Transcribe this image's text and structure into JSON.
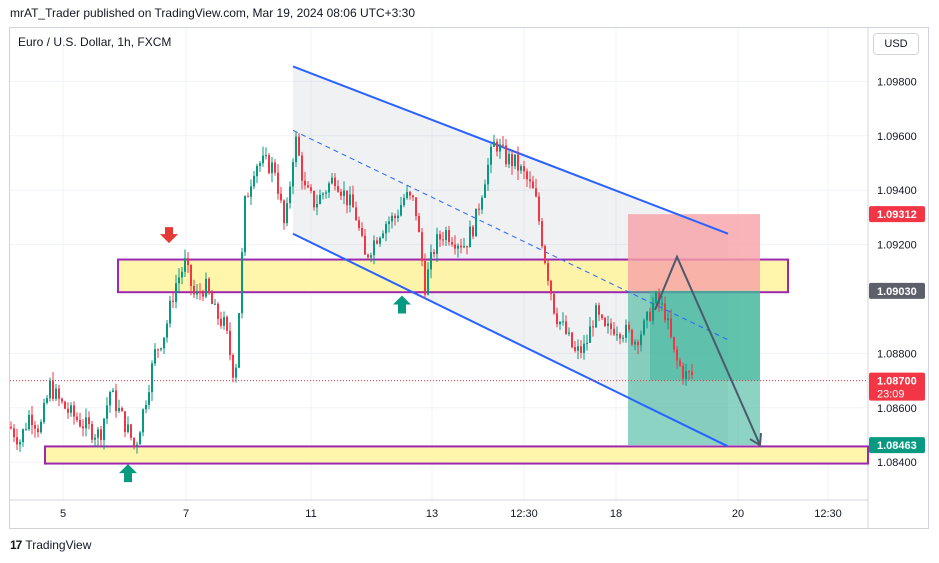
{
  "header": {
    "published_by": "mrAT_Trader published on TradingView.com, Mar 19, 2024 08:06 UTC+3:30",
    "symbol": "Euro / U.S. Dollar, 1h, FXCM",
    "currency_button": "USD"
  },
  "footer": {
    "brand_mark": "17",
    "brand": "TradingView"
  },
  "colors": {
    "up": "#089981",
    "down": "#f23645",
    "channel": "#2962ff",
    "zone_fill": "#fff59d",
    "zone_border": "#9c27b0",
    "stop": "#f7a1a8",
    "target": "#3fb69b",
    "label_dark": "#5d606b"
  },
  "chart_data": {
    "type": "candlestick",
    "title": "Euro / U.S. Dollar, 1h, FXCM",
    "ylim": [
      1.0825,
      1.0995
    ],
    "y_ticks": [
      "1.09800",
      "1.09600",
      "1.09400",
      "1.09200",
      "1.08800",
      "1.08600",
      "1.08400"
    ],
    "x_ticks": [
      "5",
      "7",
      "11",
      "13",
      "12:30",
      "18",
      "20",
      "12:30"
    ],
    "price_labels": [
      {
        "text": "1.09312",
        "value": 1.09312,
        "color": "#f23645"
      },
      {
        "text": "1.09030",
        "value": 1.0903,
        "color": "#5d606b"
      },
      {
        "text": "1.08700",
        "value": 1.087,
        "color": "#f23645",
        "countdown": "23:09"
      },
      {
        "text": "1.08463",
        "value": 1.08463,
        "color": "#089981"
      }
    ],
    "close_path": [
      [
        0,
        1.0853
      ],
      [
        10,
        1.0848
      ],
      [
        20,
        1.0858
      ],
      [
        30,
        1.0852
      ],
      [
        40,
        1.0868
      ],
      [
        50,
        1.0862
      ],
      [
        60,
        1.0858
      ],
      [
        70,
        1.0855
      ],
      [
        80,
        1.0852
      ],
      [
        90,
        1.085
      ],
      [
        100,
        1.0866
      ],
      [
        110,
        1.0858
      ],
      [
        120,
        1.085
      ],
      [
        125,
        1.0845
      ],
      [
        135,
        1.0862
      ],
      [
        145,
        1.088
      ],
      [
        155,
        1.0888
      ],
      [
        165,
        1.0905
      ],
      [
        175,
        1.0913
      ],
      [
        185,
        1.09
      ],
      [
        195,
        1.0905
      ],
      [
        205,
        1.0895
      ],
      [
        215,
        1.089
      ],
      [
        225,
        1.087
      ],
      [
        235,
        1.0935
      ],
      [
        245,
        1.095
      ],
      [
        255,
        1.095
      ],
      [
        265,
        1.0948
      ],
      [
        275,
        1.0925
      ],
      [
        285,
        1.096
      ],
      [
        295,
        1.094
      ],
      [
        305,
        1.0935
      ],
      [
        315,
        1.094
      ],
      [
        325,
        1.0945
      ],
      [
        335,
        1.0938
      ],
      [
        345,
        1.0932
      ],
      [
        355,
        1.0915
      ],
      [
        365,
        1.0922
      ],
      [
        375,
        1.0928
      ],
      [
        385,
        1.093
      ],
      [
        395,
        1.0938
      ],
      [
        405,
        1.0935
      ],
      [
        415,
        1.0905
      ],
      [
        425,
        1.092
      ],
      [
        435,
        1.0925
      ],
      [
        445,
        1.0922
      ],
      [
        455,
        1.092
      ],
      [
        465,
        1.0928
      ],
      [
        475,
        1.0945
      ],
      [
        485,
        1.0958
      ],
      [
        495,
        1.0952
      ],
      [
        505,
        1.095
      ],
      [
        515,
        1.0945
      ],
      [
        525,
        1.0938
      ],
      [
        535,
        1.0915
      ],
      [
        545,
        1.0895
      ],
      [
        555,
        1.0888
      ],
      [
        565,
        1.088
      ],
      [
        575,
        1.0882
      ],
      [
        585,
        1.0895
      ],
      [
        595,
        1.0888
      ],
      [
        605,
        1.089
      ],
      [
        615,
        1.0888
      ],
      [
        625,
        1.0885
      ],
      [
        635,
        1.089
      ],
      [
        645,
        1.09
      ],
      [
        655,
        1.0895
      ],
      [
        665,
        1.0878
      ],
      [
        675,
        1.0872
      ],
      [
        685,
        1.0872
      ],
      [
        692,
        1.087
      ]
    ],
    "zones": [
      {
        "name": "resistance zone",
        "x0": 118,
        "x1": 788,
        "y_top": 1.09145,
        "y_bot": 1.09025
      },
      {
        "name": "support zone",
        "x0": 45,
        "x1": 868,
        "y_top": 1.08458,
        "y_bot": 1.08395
      }
    ],
    "channel": {
      "upper": [
        [
          283,
          1.09855
        ],
        [
          718,
          1.0924
        ]
      ],
      "lower": [
        [
          283,
          1.0924
        ],
        [
          718,
          1.08458
        ]
      ],
      "mid": [
        [
          283,
          1.0962
        ],
        [
          718,
          1.0885
        ]
      ]
    },
    "position": {
      "x0": 628,
      "x1": 760,
      "stop": [
        1.09312,
        1.0903
      ],
      "target": [
        1.0903,
        1.08463
      ]
    },
    "projection": [
      [
        655,
        1.0896
      ],
      [
        677,
        1.09155
      ],
      [
        760,
        1.08463
      ]
    ],
    "markers": [
      {
        "type": "down",
        "x": 169,
        "value": 1.0922,
        "color": "#e53935"
      },
      {
        "type": "up",
        "x": 402,
        "value": 1.0898,
        "color": "#089981"
      },
      {
        "type": "up",
        "x": 128,
        "value": 1.0836,
        "color": "#089981"
      }
    ]
  }
}
